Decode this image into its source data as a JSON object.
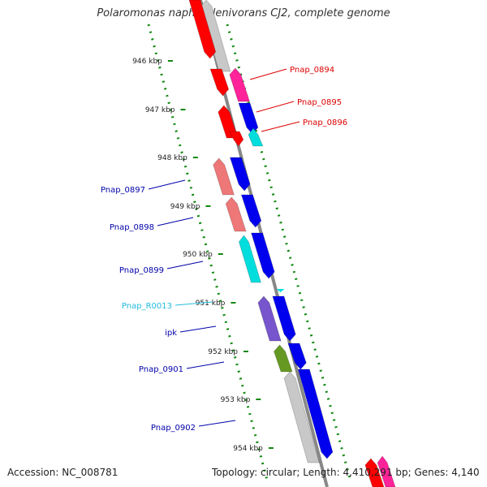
{
  "title": "Polaromonas naphthalenivorans CJ2, complete genome",
  "footer": {
    "accession": "Accession: NC_008781",
    "topology": "Topology: circular; Length: 4,410,291 bp; Genes: 4,140"
  },
  "ticks": [
    "946 kbp",
    "947 kbp",
    "948 kbp",
    "949 kbp",
    "950 kbp",
    "951 kbp",
    "952 kbp",
    "953 kbp",
    "954 kbp"
  ],
  "gene_labels": [
    {
      "text": "Pnap_0894",
      "color": "#dd0000"
    },
    {
      "text": "Pnap_0895",
      "color": "#dd0000"
    },
    {
      "text": "Pnap_0896",
      "color": "#dd0000"
    },
    {
      "text": "Pnap_0897",
      "color": "#0000aa"
    },
    {
      "text": "Pnap_0898",
      "color": "#0000aa"
    },
    {
      "text": "Pnap_0899",
      "color": "#0000aa"
    },
    {
      "text": "Pnap_R0013",
      "color": "#22bbdd"
    },
    {
      "text": "ipk",
      "color": "#0000aa"
    },
    {
      "text": "Pnap_0901",
      "color": "#0000aa"
    },
    {
      "text": "Pnap_0902",
      "color": "#0000aa"
    }
  ],
  "colors": {
    "backbone": "#888888",
    "cog_dots": "#118811",
    "red": "#ff0000",
    "pink": "#ff2299",
    "blue": "#0000ee",
    "cyan": "#00dddd",
    "salmon": "#ee7777",
    "purple": "#7755cc",
    "olive": "#669922",
    "gray": "#c8c8c8"
  }
}
